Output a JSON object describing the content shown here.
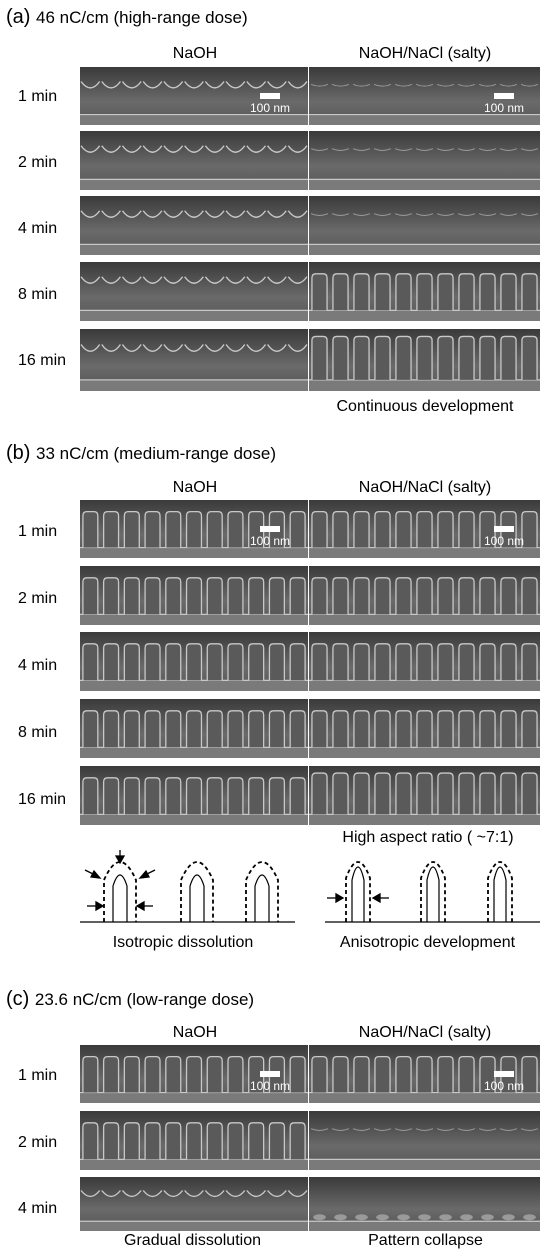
{
  "colors": {
    "sem_dark": "#4a4a4a",
    "sem_light": "#c8c8c8",
    "text": "#000000"
  },
  "panels": [
    {
      "title_letter": "(a)",
      "title_text": "46 nC/cm (high-range dose)",
      "col_left": "NaOH",
      "col_right": "NaOH/NaCl (salty)",
      "scale_label": "100 nm",
      "rows": [
        "1 min",
        "2 min",
        "4 min",
        "8 min",
        "16 min"
      ],
      "right_caption": "Continuous development"
    },
    {
      "title_letter": "(b)",
      "title_text": "33 nC/cm (medium-range dose)",
      "col_left": "NaOH",
      "col_right": "NaOH/NaCl (salty)",
      "scale_label": "100 nm",
      "rows": [
        "1 min",
        "2 min",
        "4 min",
        "8 min",
        "16 min"
      ],
      "right_caption": "High aspect ratio ( ~7:1)",
      "schematic_left": "Isotropic dissolution",
      "schematic_right": "Anisotropic development"
    },
    {
      "title_letter": "(c)",
      "title_text": "23.6 nC/cm (low-range dose)",
      "col_left": "NaOH",
      "col_right": "NaOH/NaCl (salty)",
      "scale_label": "100 nm",
      "rows": [
        "1 min",
        "2 min",
        "4 min"
      ],
      "left_caption": "Gradual dissolution",
      "right_caption": "Pattern collapse"
    }
  ]
}
